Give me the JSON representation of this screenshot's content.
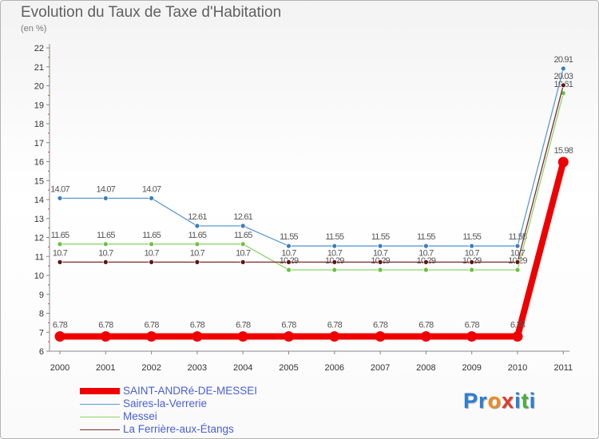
{
  "chart_data": {
    "type": "line",
    "title": "Evolution du Taux de Taxe d'Habitation",
    "ylabel": "(en %)",
    "xlabel": "",
    "categories": [
      "2000",
      "2001",
      "2002",
      "2003",
      "2004",
      "2005",
      "2006",
      "2007",
      "2008",
      "2009",
      "2010",
      "2011"
    ],
    "ylim": [
      6,
      22
    ],
    "yticks": [
      6,
      7,
      8,
      9,
      10,
      11,
      12,
      13,
      14,
      15,
      16,
      17,
      18,
      19,
      20,
      21,
      22
    ],
    "grid": false,
    "legend_position": "bottom-left",
    "series": [
      {
        "name": "Saires-la-Verrerie",
        "color": "#5b9bd5",
        "marker": "#3a7ec2",
        "values": [
          14.07,
          14.07,
          14.07,
          12.61,
          12.61,
          11.55,
          11.55,
          11.55,
          11.55,
          11.55,
          11.55,
          20.91
        ],
        "labels": [
          "14.07",
          "14.07",
          "14.07",
          "12.61",
          "12.61",
          "11.55",
          "11.55",
          "11.55",
          "11.55",
          "11.55",
          "11.55",
          "20.91"
        ]
      },
      {
        "name": "Messei",
        "color": "#8cd46a",
        "marker": "#6cc040",
        "values": [
          11.65,
          11.65,
          11.65,
          11.65,
          11.65,
          10.29,
          10.29,
          10.29,
          10.29,
          10.29,
          10.29,
          19.61
        ],
        "labels": [
          "11.65",
          "11.65",
          "11.65",
          "11.65",
          "11.65",
          "10.29",
          "10.29",
          "10.29",
          "10.29",
          "10.29",
          "10.29",
          "19.61"
        ]
      },
      {
        "name": "La Ferrière-aux-Étangs",
        "color": "#7a2c2c",
        "marker": "#5e1515",
        "values": [
          10.7,
          10.7,
          10.7,
          10.7,
          10.7,
          10.7,
          10.7,
          10.7,
          10.7,
          10.7,
          10.7,
          20.03
        ],
        "labels": [
          "10.7",
          "10.7",
          "10.7",
          "10.7",
          "10.7",
          "10.7",
          "10.7",
          "10.7",
          "10.7",
          "10.7",
          "10.7",
          "20.03"
        ]
      },
      {
        "name": "SAINT-ANDRé-DE-MESSEI",
        "color": "#ee0000",
        "marker": "#ee0000",
        "values": [
          6.78,
          6.78,
          6.78,
          6.78,
          6.78,
          6.78,
          6.78,
          6.78,
          6.78,
          6.78,
          6.78,
          15.98
        ],
        "labels": [
          "6.78",
          "6.78",
          "6.78",
          "6.78",
          "6.78",
          "6.78",
          "6.78",
          "6.78",
          "6.78",
          "6.78",
          "6.78",
          "15.98"
        ]
      }
    ]
  },
  "legend": [
    {
      "label": "SAINT-ANDRé-DE-MESSEI",
      "color": "#ee0000",
      "thickness": 8
    },
    {
      "label": "Saires-la-Verrerie",
      "color": "#5b9bd5",
      "thickness": 1
    },
    {
      "label": "Messei",
      "color": "#8cd46a",
      "thickness": 1
    },
    {
      "label": "La Ferrière-aux-Étangs",
      "color": "#7a2c2c",
      "thickness": 1
    }
  ],
  "logo": {
    "letters": [
      "P",
      "r",
      "o",
      "x",
      "i",
      "t",
      "i"
    ],
    "colors": [
      "#2a7fd4",
      "#2a7fd4",
      "#f08a1c",
      "#e03a2a",
      "#2a7fd4",
      "#4cae3c",
      "#2a7fd4"
    ]
  }
}
